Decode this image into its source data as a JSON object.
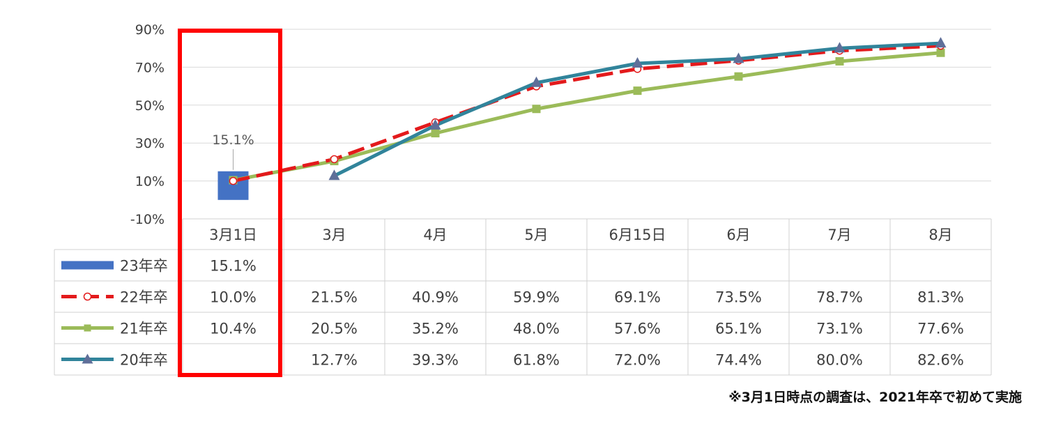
{
  "chart_data": {
    "type": "line",
    "categories": [
      "3月1日",
      "3月",
      "4月",
      "5月",
      "6月15日",
      "6月",
      "7月",
      "8月"
    ],
    "ylim": [
      -10,
      90
    ],
    "yticks": [
      "90%",
      "70%",
      "50%",
      "30%",
      "10%",
      "-10%"
    ],
    "ytick_values": [
      90,
      70,
      50,
      30,
      10,
      -10
    ],
    "grid": true,
    "series": [
      {
        "name": "23年卒",
        "type": "bar",
        "color": "#4472c4",
        "values": [
          15.1,
          null,
          null,
          null,
          null,
          null,
          null,
          null
        ],
        "labels": [
          "15.1%",
          "",
          "",
          "",
          "",
          "",
          "",
          ""
        ]
      },
      {
        "name": "22年卒",
        "type": "line",
        "color": "#e31a1c",
        "dash": true,
        "marker": "circle-open",
        "values": [
          10.0,
          21.5,
          40.9,
          59.9,
          69.1,
          73.5,
          78.7,
          81.3
        ],
        "labels": [
          "10.0%",
          "21.5%",
          "40.9%",
          "59.9%",
          "69.1%",
          "73.5%",
          "78.7%",
          "81.3%"
        ]
      },
      {
        "name": "21年卒",
        "type": "line",
        "color": "#9bbb59",
        "marker": "square",
        "values": [
          10.4,
          20.5,
          35.2,
          48.0,
          57.6,
          65.1,
          73.1,
          77.6
        ],
        "labels": [
          "10.4%",
          "20.5%",
          "35.2%",
          "48.0%",
          "57.6%",
          "65.1%",
          "73.1%",
          "77.6%"
        ]
      },
      {
        "name": "20年卒",
        "type": "line",
        "color": "#31849b",
        "marker": "triangle",
        "values": [
          null,
          12.7,
          39.3,
          61.8,
          72.0,
          74.4,
          80.0,
          82.6
        ],
        "labels": [
          "",
          "12.7%",
          "39.3%",
          "61.8%",
          "72.0%",
          "74.4%",
          "80.0%",
          "82.6%"
        ]
      }
    ],
    "annotations": [
      {
        "text": "15.1%",
        "target": "23年卒 / 3月1日"
      }
    ],
    "highlight": {
      "category": "3月1日",
      "color": "#ff0000"
    }
  },
  "footnote": "※3月1日時点の調査は、2021年卒で初めて実施"
}
